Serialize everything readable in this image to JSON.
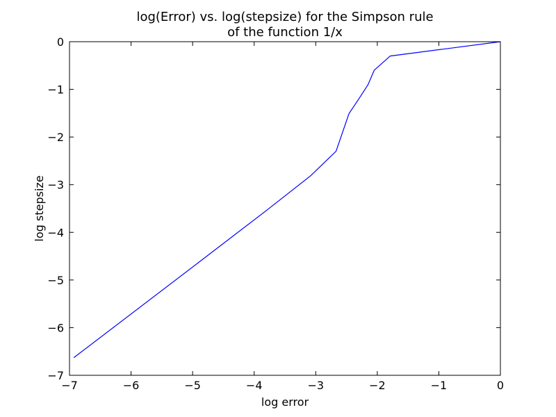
{
  "chart_data": {
    "type": "line",
    "title": [
      "log(Error) vs. log(stepsize) for the Simpson rule",
      "of the function 1/x"
    ],
    "xlabel": "log error",
    "ylabel": "log stepsize",
    "xlim": [
      -7,
      0
    ],
    "ylim": [
      -7,
      0
    ],
    "x_ticks": [
      -7,
      -6,
      -5,
      -4,
      -3,
      -2,
      -1,
      0
    ],
    "y_ticks": [
      -7,
      -6,
      -5,
      -4,
      -3,
      -2,
      -1,
      0
    ],
    "x_tick_labels": [
      "−7",
      "−6",
      "−5",
      "−4",
      "−3",
      "−2",
      "−1",
      "0"
    ],
    "y_tick_labels": [
      "−7",
      "−6",
      "−5",
      "−4",
      "−3",
      "−2",
      "−1",
      "0"
    ],
    "grid": false,
    "series": [
      {
        "color": "#0000ff",
        "x": [
          -6.93,
          -4.87,
          -3.77,
          -3.08,
          -2.67,
          -2.46,
          -2.3,
          -2.15,
          -2.05,
          -1.79,
          0.0
        ],
        "y": [
          -6.63,
          -4.6,
          -3.51,
          -2.81,
          -2.3,
          -1.51,
          -1.2,
          -0.9,
          -0.6,
          -0.3,
          0.0
        ]
      }
    ]
  }
}
